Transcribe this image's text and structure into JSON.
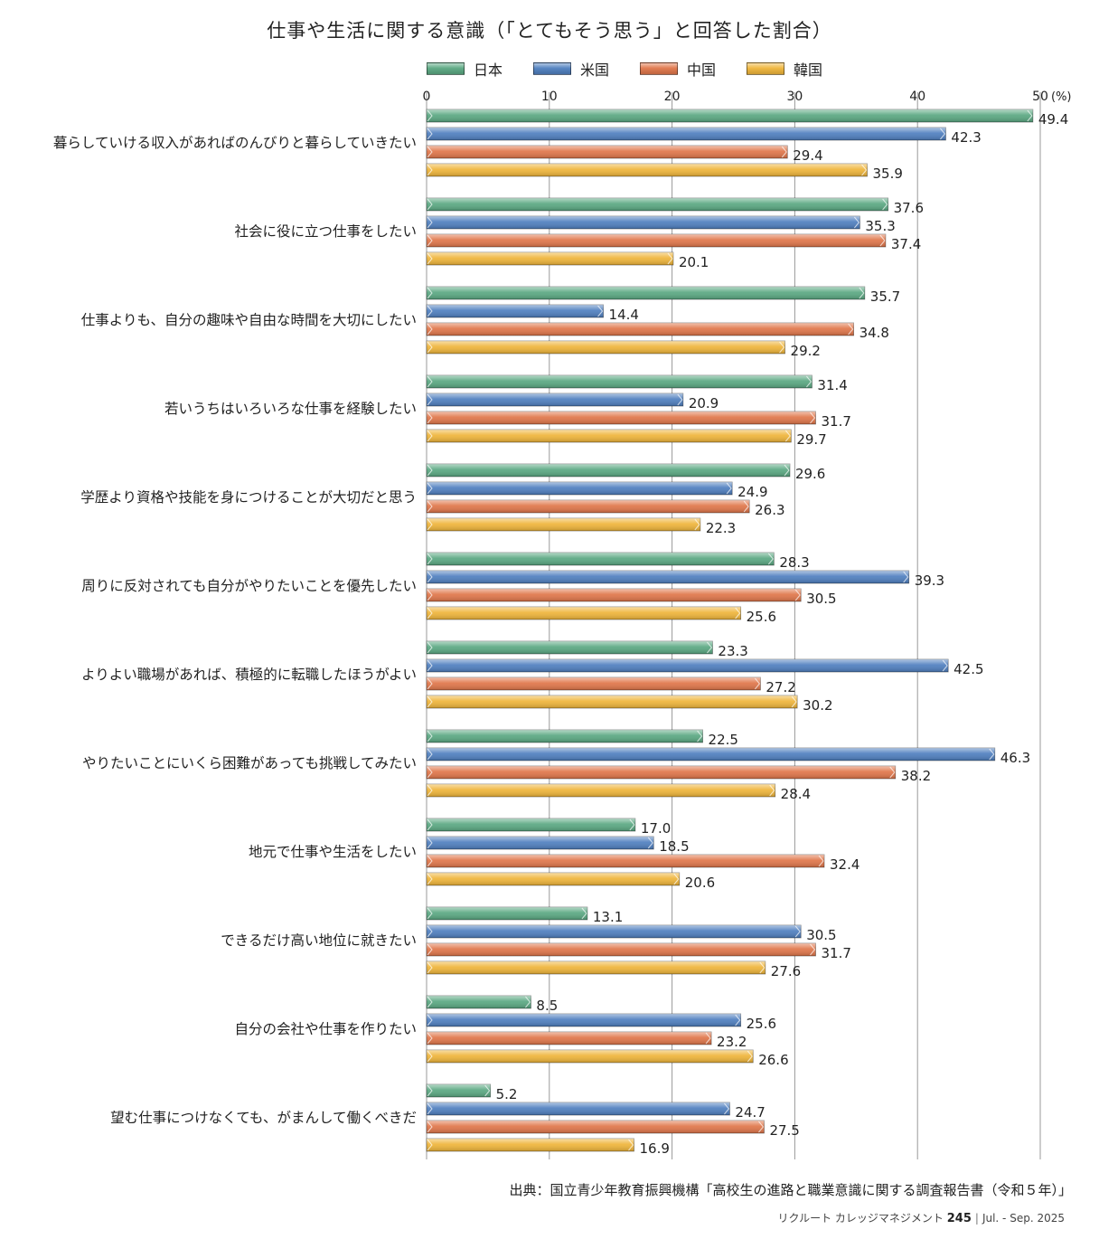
{
  "chart_data": {
    "type": "bar",
    "orientation": "horizontal",
    "title": "仕事や生活に関する意識（「とてもそう思う」と回答した割合）",
    "unit": "(%)",
    "xlim": [
      0,
      50
    ],
    "ticks": [
      "0",
      "10",
      "20",
      "30",
      "40",
      "50"
    ],
    "grid": true,
    "legend_position": "top",
    "categories": [
      "暮らしていける収入があればのんびりと暮らしていきたい",
      "社会に役に立つ仕事をしたい",
      "仕事よりも、自分の趣味や自由な時間を大切にしたい",
      "若いうちはいろいろな仕事を経験したい",
      "学歴より資格や技能を身につけることが大切だと思う",
      "周りに反対されても自分がやりたいことを優先したい",
      "よりよい職場があれば、積極的に転職したほうがよい",
      "やりたいことにいくら困難があっても挑戦してみたい",
      "地元で仕事や生活をしたい",
      "できるだけ高い地位に就きたい",
      "自分の会社や仕事を作りたい",
      "望む仕事につけなくても、がまんして働くべきだ"
    ],
    "series": [
      {
        "name": "日本",
        "color": "#5aa882",
        "values": [
          49.4,
          37.6,
          35.7,
          31.4,
          29.6,
          28.3,
          23.3,
          22.5,
          17.0,
          13.1,
          8.5,
          5.2
        ]
      },
      {
        "name": "米国",
        "color": "#4f7fbf",
        "values": [
          42.3,
          35.3,
          14.4,
          20.9,
          24.9,
          39.3,
          42.5,
          46.3,
          18.5,
          30.5,
          25.6,
          24.7
        ]
      },
      {
        "name": "中国",
        "color": "#e0764a",
        "values": [
          29.4,
          37.4,
          34.8,
          31.7,
          26.3,
          30.5,
          27.2,
          38.2,
          32.4,
          31.7,
          23.2,
          27.5
        ]
      },
      {
        "name": "韓国",
        "color": "#efb53a",
        "values": [
          35.9,
          20.1,
          29.2,
          29.7,
          22.3,
          25.6,
          30.2,
          28.4,
          20.6,
          27.6,
          26.6,
          16.9
        ]
      }
    ]
  },
  "source": "出典：国立青少年教育振興機構「高校生の進路と職業意識に関する調査報告書（令和５年）」",
  "footer": {
    "publication": "リクルート カレッジマネジメント",
    "issue_number": "245",
    "separator": "|",
    "period": "Jul. - Sep. 2025"
  }
}
